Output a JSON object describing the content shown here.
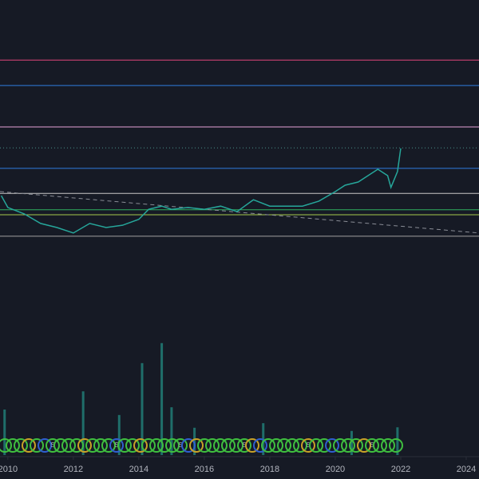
{
  "chart_data": {
    "type": "line",
    "x": [
      2009.8,
      2010,
      2010.5,
      2011,
      2011.5,
      2012,
      2012.5,
      2013,
      2013.5,
      2014,
      2014.3,
      2014.7,
      2015,
      2015.5,
      2016,
      2016.5,
      2017,
      2017.5,
      2018,
      2018.5,
      2019,
      2019.5,
      2020,
      2020.3,
      2020.7,
      2021,
      2021.3,
      2021.6,
      2021.7,
      2021.9,
      2022.0
    ],
    "values": [
      57,
      54.4,
      53,
      50.9,
      50,
      48.8,
      50.9,
      50,
      50.5,
      51.8,
      54,
      54.7,
      54,
      54.4,
      54,
      54.7,
      53.5,
      56.1,
      54.7,
      54.7,
      54.7,
      55.8,
      57.9,
      59.3,
      60,
      61.4,
      62.8,
      61.4,
      58.8,
      62.3,
      67.4
    ],
    "color": "#26a69a",
    "volume": {
      "x": [
        2009.9,
        2012.3,
        2013.4,
        2014.1,
        2014.7,
        2015,
        2015.7,
        2017.8,
        2020.5,
        2021.9
      ],
      "values": [
        10,
        14,
        8.8,
        20.2,
        24.6,
        10.5,
        6,
        7,
        5.3,
        6.1
      ],
      "color": "#26a69a"
    },
    "levels": [
      {
        "value": 86.8,
        "color": "#e0457b",
        "style": "solid"
      },
      {
        "value": 81.2,
        "color": "#2f7de1",
        "style": "solid"
      },
      {
        "value": 72.1,
        "color": "#e6a3d6",
        "style": "solid"
      },
      {
        "value": 67.5,
        "color": "#4a8f8a",
        "style": "dotted"
      },
      {
        "value": 63,
        "color": "#2f7de1",
        "style": "solid"
      },
      {
        "value": 57.5,
        "color": "#c8c8c8",
        "style": "solid"
      },
      {
        "value": 53.9,
        "color": "#2fae60",
        "style": "solid"
      },
      {
        "value": 52.8,
        "color": "#a5c94a",
        "style": "solid"
      },
      {
        "value": 48.1,
        "color": "#a0a0a0",
        "style": "solid"
      }
    ],
    "trendline": {
      "x": [
        2009.76,
        2024.39
      ],
      "values": [
        57.9,
        48.8
      ],
      "color": "#8a8d96"
    },
    "signal_label": "S",
    "xlim": [
      2009.76,
      2024.39
    ],
    "xticks": [
      2010,
      2012,
      2014,
      2016,
      2018,
      2020,
      2022,
      2024
    ],
    "ylim": [
      0,
      100
    ]
  }
}
